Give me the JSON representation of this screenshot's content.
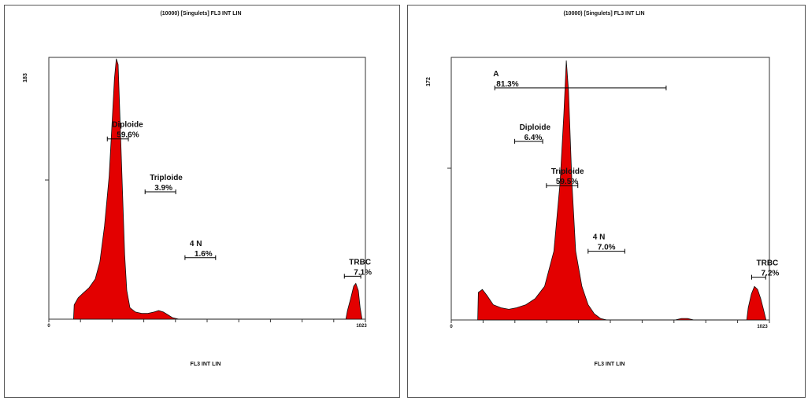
{
  "chart_data": [
    {
      "type": "area",
      "title": "(10000) [Singulets] FL3 INT LIN",
      "xlabel": "FL3 INT LIN",
      "ylabel": "",
      "xlim": [
        0,
        1023
      ],
      "ylim": [
        0,
        183
      ],
      "x_tick_labels": [
        "0",
        "1023"
      ],
      "y_tick_labels": [
        "183"
      ],
      "histogram": [
        {
          "x": 80,
          "y": 0
        },
        {
          "x": 82,
          "y": 10
        },
        {
          "x": 95,
          "y": 15
        },
        {
          "x": 110,
          "y": 18
        },
        {
          "x": 130,
          "y": 22
        },
        {
          "x": 150,
          "y": 28
        },
        {
          "x": 165,
          "y": 40
        },
        {
          "x": 180,
          "y": 65
        },
        {
          "x": 195,
          "y": 100
        },
        {
          "x": 205,
          "y": 140
        },
        {
          "x": 212,
          "y": 168
        },
        {
          "x": 218,
          "y": 182
        },
        {
          "x": 224,
          "y": 178
        },
        {
          "x": 230,
          "y": 140
        },
        {
          "x": 238,
          "y": 90
        },
        {
          "x": 245,
          "y": 45
        },
        {
          "x": 252,
          "y": 20
        },
        {
          "x": 262,
          "y": 8
        },
        {
          "x": 280,
          "y": 5
        },
        {
          "x": 300,
          "y": 4
        },
        {
          "x": 320,
          "y": 4
        },
        {
          "x": 340,
          "y": 5
        },
        {
          "x": 355,
          "y": 6
        },
        {
          "x": 370,
          "y": 5
        },
        {
          "x": 385,
          "y": 3
        },
        {
          "x": 400,
          "y": 1
        },
        {
          "x": 420,
          "y": 0
        },
        {
          "x": 960,
          "y": 0
        },
        {
          "x": 965,
          "y": 6
        },
        {
          "x": 975,
          "y": 14
        },
        {
          "x": 985,
          "y": 23
        },
        {
          "x": 992,
          "y": 25
        },
        {
          "x": 1000,
          "y": 20
        },
        {
          "x": 1006,
          "y": 8
        },
        {
          "x": 1012,
          "y": 0
        }
      ],
      "gates": [
        {
          "name": "Diploide",
          "percent": "59.6%",
          "x_start": 189,
          "x_end": 257,
          "level": 126
        },
        {
          "name": "Triploide",
          "percent": "3.9%",
          "x_start": 311,
          "x_end": 410,
          "level": 89
        },
        {
          "name": "4 N",
          "percent": "1.6%",
          "x_start": 440,
          "x_end": 539,
          "level": 43
        },
        {
          "name": "TRBC",
          "percent": "7.1%",
          "x_start": 955,
          "x_end": 1008,
          "level": 30
        }
      ]
    },
    {
      "type": "area",
      "title": "(10000) [Singulets] FL3 INT LIN",
      "xlabel": "FL3 INT LIN",
      "ylabel": "",
      "xlim": [
        0,
        1023
      ],
      "ylim": [
        0,
        172
      ],
      "x_tick_labels": [
        "0",
        "1023"
      ],
      "y_tick_labels": [
        "172"
      ],
      "histogram": [
        {
          "x": 85,
          "y": 0
        },
        {
          "x": 87,
          "y": 18
        },
        {
          "x": 100,
          "y": 20
        },
        {
          "x": 115,
          "y": 16
        },
        {
          "x": 135,
          "y": 10
        },
        {
          "x": 160,
          "y": 8
        },
        {
          "x": 185,
          "y": 7
        },
        {
          "x": 210,
          "y": 8
        },
        {
          "x": 240,
          "y": 10
        },
        {
          "x": 270,
          "y": 14
        },
        {
          "x": 300,
          "y": 22
        },
        {
          "x": 330,
          "y": 45
        },
        {
          "x": 350,
          "y": 90
        },
        {
          "x": 362,
          "y": 135
        },
        {
          "x": 370,
          "y": 170
        },
        {
          "x": 377,
          "y": 150
        },
        {
          "x": 388,
          "y": 90
        },
        {
          "x": 400,
          "y": 45
        },
        {
          "x": 420,
          "y": 22
        },
        {
          "x": 440,
          "y": 10
        },
        {
          "x": 460,
          "y": 4
        },
        {
          "x": 480,
          "y": 1
        },
        {
          "x": 500,
          "y": 0
        },
        {
          "x": 720,
          "y": 0
        },
        {
          "x": 740,
          "y": 1
        },
        {
          "x": 760,
          "y": 1
        },
        {
          "x": 780,
          "y": 0
        },
        {
          "x": 950,
          "y": 0
        },
        {
          "x": 955,
          "y": 8
        },
        {
          "x": 965,
          "y": 17
        },
        {
          "x": 975,
          "y": 22
        },
        {
          "x": 985,
          "y": 20
        },
        {
          "x": 995,
          "y": 14
        },
        {
          "x": 1005,
          "y": 6
        },
        {
          "x": 1012,
          "y": 0
        }
      ],
      "gates": [
        {
          "name": "A",
          "percent": "81.3%",
          "x_start": 140,
          "x_end": 691,
          "level": 152
        },
        {
          "name": "Diploide",
          "percent": "6.4%",
          "x_start": 204,
          "x_end": 294,
          "level": 117
        },
        {
          "name": "Triploide",
          "percent": "59.5%",
          "x_start": 306,
          "x_end": 407,
          "level": 88
        },
        {
          "name": "4 N",
          "percent": "7.0%",
          "x_start": 440,
          "x_end": 558,
          "level": 45
        },
        {
          "name": "TRBC",
          "percent": "7.2%",
          "x_start": 966,
          "x_end": 1011,
          "level": 28
        }
      ]
    }
  ]
}
